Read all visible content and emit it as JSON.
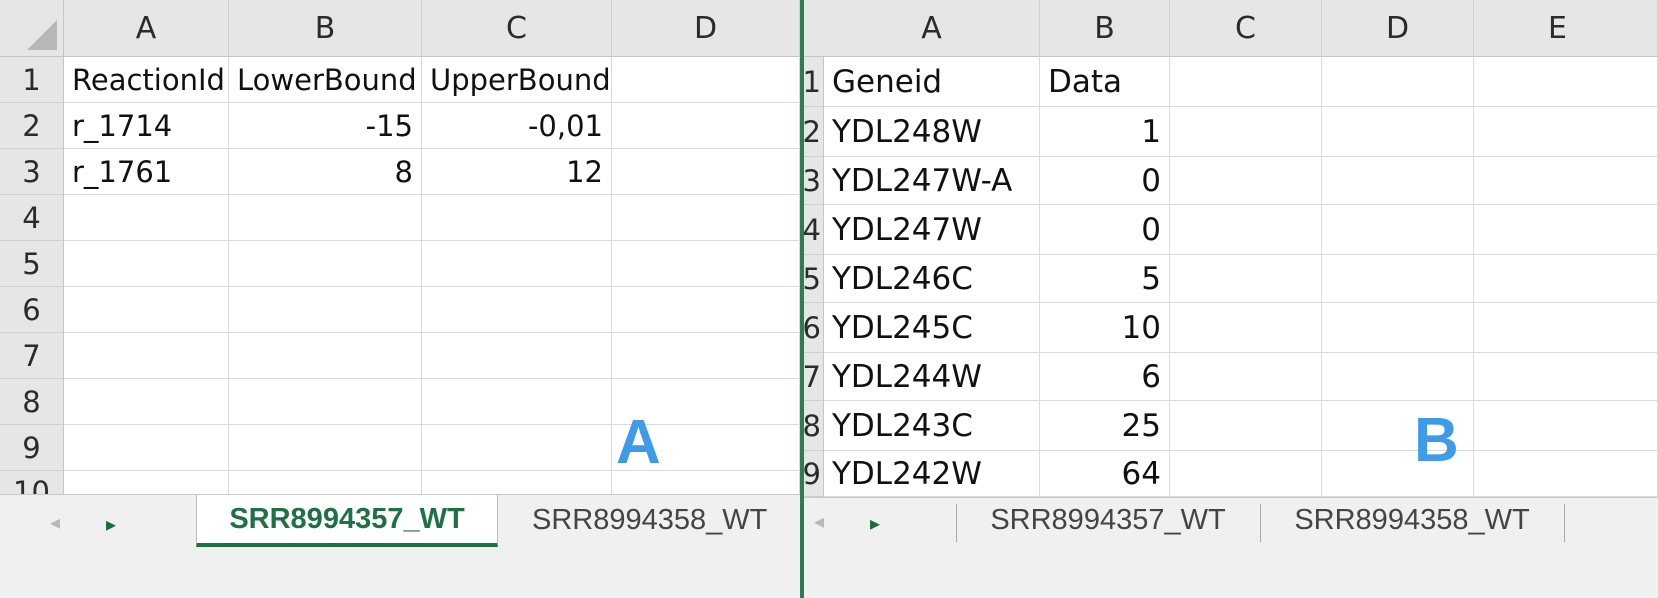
{
  "panel_a": {
    "label": "A",
    "columns": [
      "A",
      "B",
      "C",
      "D"
    ],
    "rows": [
      "1",
      "2",
      "3",
      "4",
      "5",
      "6",
      "7",
      "8",
      "9",
      "10"
    ],
    "cells": [
      [
        "ReactionId",
        "LowerBound",
        "UpperBound"
      ],
      [
        "r_1714",
        "-15",
        "-0,01"
      ],
      [
        "r_1761",
        "8",
        "12"
      ]
    ],
    "tabs": [
      "SRR8994357_WT",
      "SRR8994358_WT"
    ],
    "active_tab": "SRR8994357_WT"
  },
  "panel_b": {
    "label": "B",
    "columns": [
      "A",
      "B",
      "C",
      "D",
      "E"
    ],
    "rows": [
      "1",
      "2",
      "3",
      "4",
      "5",
      "6",
      "7",
      "8",
      "9"
    ],
    "cells": [
      [
        "Geneid",
        "Data"
      ],
      [
        "YDL248W",
        "1"
      ],
      [
        "YDL247W-A",
        "0"
      ],
      [
        "YDL247W",
        "0"
      ],
      [
        "YDL246C",
        "5"
      ],
      [
        "YDL245C",
        "10"
      ],
      [
        "YDL244W",
        "6"
      ],
      [
        "YDL243C",
        "25"
      ],
      [
        "YDL242W",
        "64"
      ]
    ],
    "tabs": [
      "SRR8994357_WT",
      "SRR8994358_WT"
    ]
  },
  "colors": {
    "accent_green": "#1e7145",
    "label_blue": "#3d9be9",
    "header_gray": "#e6e6e6"
  },
  "icons": {
    "prev_sheet": "triangle-left",
    "next_sheet": "triangle-right"
  }
}
